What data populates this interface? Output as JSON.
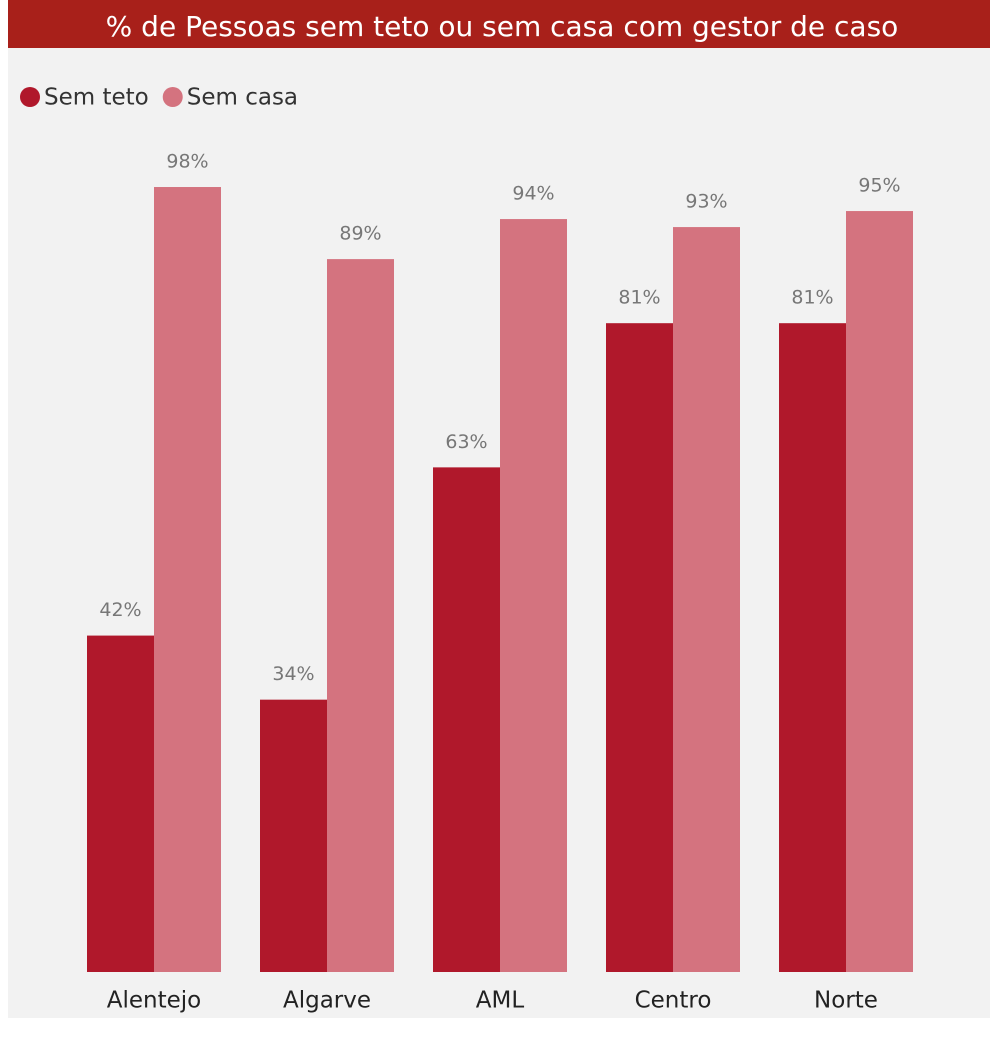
{
  "chart_data": {
    "type": "bar",
    "title": "% de Pessoas sem teto ou sem casa com gestor de caso",
    "categories": [
      "Alentejo",
      "Algarve",
      "AML",
      "Centro",
      "Norte"
    ],
    "series": [
      {
        "name": "Sem teto",
        "color": "#b0182b",
        "values": [
          42,
          34,
          63,
          81,
          81
        ],
        "value_labels": [
          "42%",
          "34%",
          "63%",
          "81%",
          "81%"
        ]
      },
      {
        "name": "Sem casa",
        "color": "#d4737f",
        "values": [
          98,
          89,
          94,
          93,
          95
        ],
        "value_labels": [
          "98%",
          "89%",
          "94%",
          "93%",
          "95%"
        ]
      }
    ]
  }
}
